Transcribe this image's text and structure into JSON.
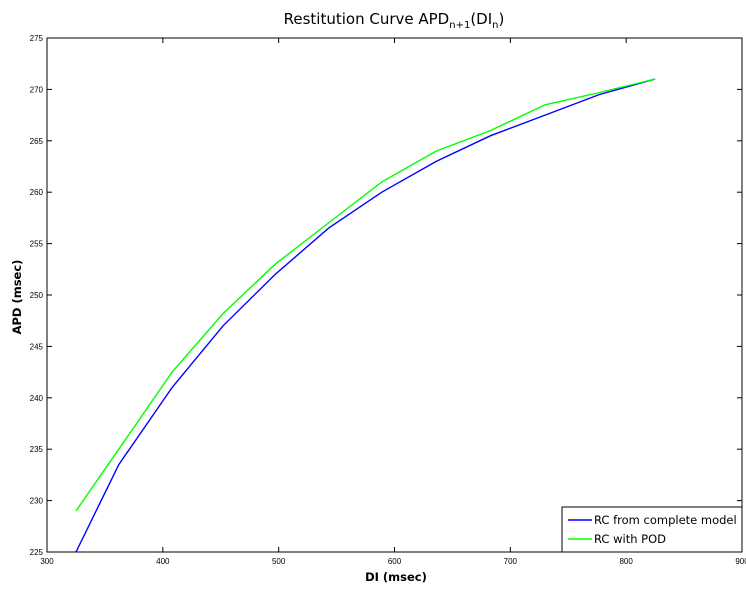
{
  "chart_data": {
    "type": "line",
    "title": {
      "prefix": "Restitution Curve APD",
      "sub1": "n+1",
      "mid": "(DI",
      "sub2": "n",
      "suffix": ")"
    },
    "xlabel": "DI (msec)",
    "ylabel": "APD (msec)",
    "xlim": [
      300,
      900
    ],
    "ylim": [
      225,
      275
    ],
    "xticks": [
      300,
      400,
      500,
      600,
      700,
      800,
      900
    ],
    "yticks": [
      225,
      230,
      235,
      240,
      245,
      250,
      255,
      260,
      265,
      270,
      275
    ],
    "grid": false,
    "legend_position": "bottom-right",
    "series": [
      {
        "name": "RC from complete model",
        "color": "#0000ff",
        "x": [
          325,
          362,
          408,
          452,
          497,
          543,
          589,
          636,
          683,
          730,
          777,
          825
        ],
        "y": [
          225.0,
          233.5,
          241.0,
          247.0,
          252.0,
          256.5,
          260.0,
          263.0,
          265.5,
          267.5,
          269.5,
          271.0
        ]
      },
      {
        "name": "RC with POD",
        "color": "#00ff00",
        "x": [
          325,
          362,
          408,
          452,
          497,
          543,
          589,
          636,
          683,
          730,
          777,
          825
        ],
        "y": [
          229.0,
          235.0,
          242.5,
          248.2,
          253.0,
          257.0,
          261.0,
          264.0,
          266.0,
          268.5,
          269.7,
          271.0
        ]
      }
    ]
  }
}
